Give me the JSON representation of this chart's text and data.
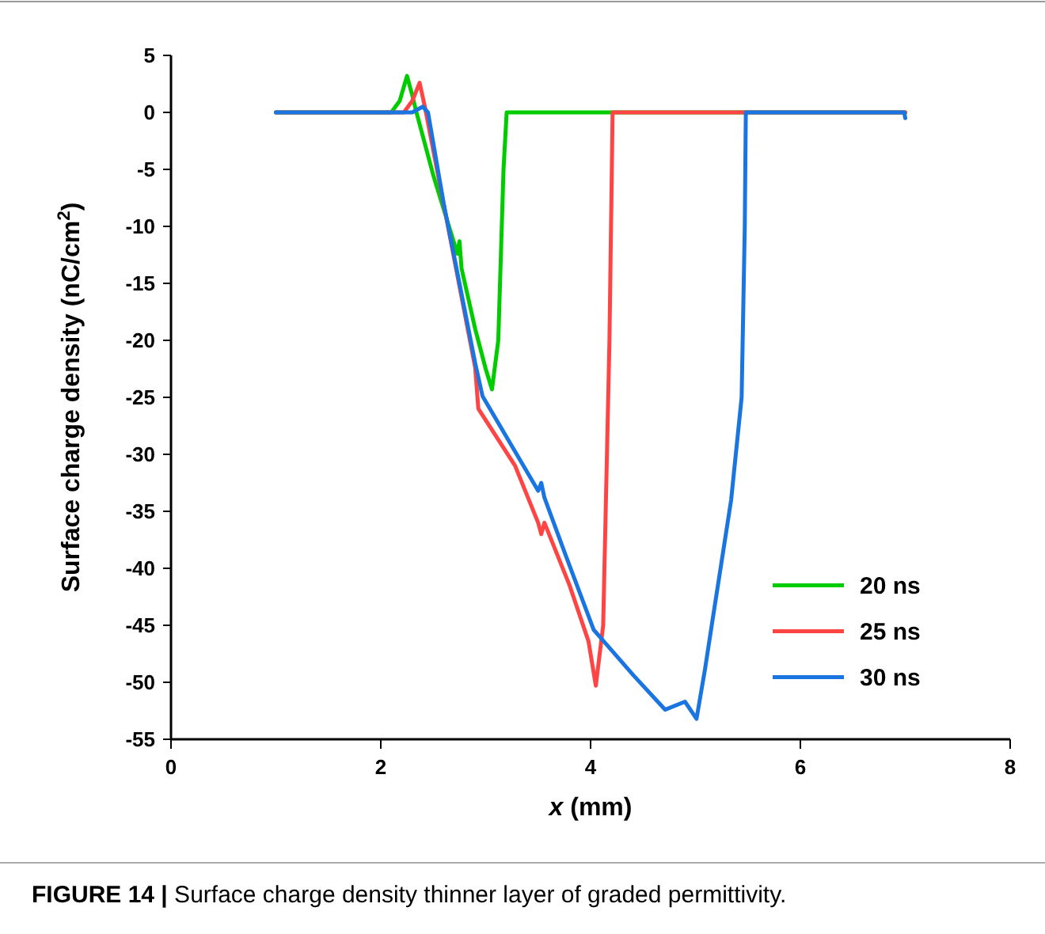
{
  "chart_data": {
    "type": "line",
    "xlabel": "x (mm)",
    "ylabel": "Surface charge density (nC/cm$^{2}$)",
    "xlim": [
      0,
      8
    ],
    "ylim": [
      -55,
      5
    ],
    "xticks": [
      0,
      2,
      4,
      6,
      8
    ],
    "yticks": [
      -55,
      -50,
      -45,
      -40,
      -35,
      -30,
      -25,
      -20,
      -15,
      -10,
      -5,
      0,
      5
    ],
    "legend": "bottom right",
    "grid": false,
    "marker": "none",
    "line_style": "solid",
    "annotations": [
      "FIGURE 14 | Surface charge density thinner layer of graded permittivity."
    ],
    "series": [
      {
        "name": "20 ns",
        "color": "#00cc00",
        "x": [
          1,
          2.1,
          2.18,
          2.25,
          2.3,
          2.34,
          2.5,
          2.73,
          2.75,
          2.77,
          2.9,
          3.0,
          3.06,
          3.12,
          3.17,
          3.2,
          4,
          7
        ],
        "values": [
          0,
          0,
          1,
          3.2,
          1.5,
          0,
          -5.5,
          -12.4,
          -11.3,
          -13.7,
          -19,
          -22.5,
          -24.3,
          -20,
          -5,
          0,
          0,
          0
        ]
      },
      {
        "name": "25 ns",
        "color": "#ff4444",
        "x": [
          1,
          2.22,
          2.3,
          2.37,
          2.42,
          2.9,
          2.93,
          3.28,
          3.5,
          3.53,
          3.56,
          3.8,
          3.98,
          4.05,
          4.12,
          4.18,
          4.21,
          5,
          7
        ],
        "values": [
          0,
          0,
          1,
          2.6,
          0.5,
          -22.4,
          -26,
          -31,
          -36,
          -37,
          -36,
          -41.5,
          -46.4,
          -50.3,
          -45,
          -20,
          0,
          0,
          0
        ]
      },
      {
        "name": "30 ns",
        "color": "#1a75e0",
        "x": [
          1,
          2.3,
          2.4,
          2.45,
          2.6,
          2.9,
          2.97,
          3.5,
          3.53,
          3.56,
          3.76,
          4.03,
          4.41,
          4.71,
          4.9,
          5.01,
          5.09,
          5.16,
          5.34,
          5.44,
          5.47,
          5.48,
          6,
          6.99,
          7.0
        ],
        "values": [
          0,
          0,
          0.5,
          0,
          -8,
          -22,
          -24.9,
          -33.2,
          -32.5,
          -33.8,
          -38.8,
          -45.4,
          -49.4,
          -52.4,
          -51.7,
          -53.2,
          -48.9,
          -44.7,
          -34,
          -25,
          -10,
          0,
          0,
          0,
          -0.5
        ]
      }
    ]
  }
}
